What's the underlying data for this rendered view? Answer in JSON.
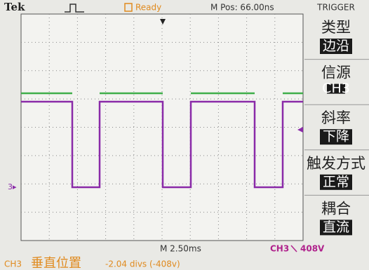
{
  "header": {
    "brand": "Tek",
    "status": "Ready",
    "position": "M Pos: 66.00ns",
    "menu_title": "TRIGGER"
  },
  "menu": [
    {
      "label": "类型",
      "value": "边沿"
    },
    {
      "label": "信源",
      "value": "CH3"
    },
    {
      "label": "斜率",
      "value": "下降"
    },
    {
      "label": "触发方式",
      "value": "正常"
    },
    {
      "label": "耦合",
      "value": "直流"
    }
  ],
  "footer": {
    "timebase": "M 2.50ms",
    "trigger_source": "CH3",
    "trigger_level": "408V"
  },
  "status_line": {
    "channel": "CH3",
    "setting": "垂直位置",
    "value": "-2.04 divs (-408v)"
  }
}
